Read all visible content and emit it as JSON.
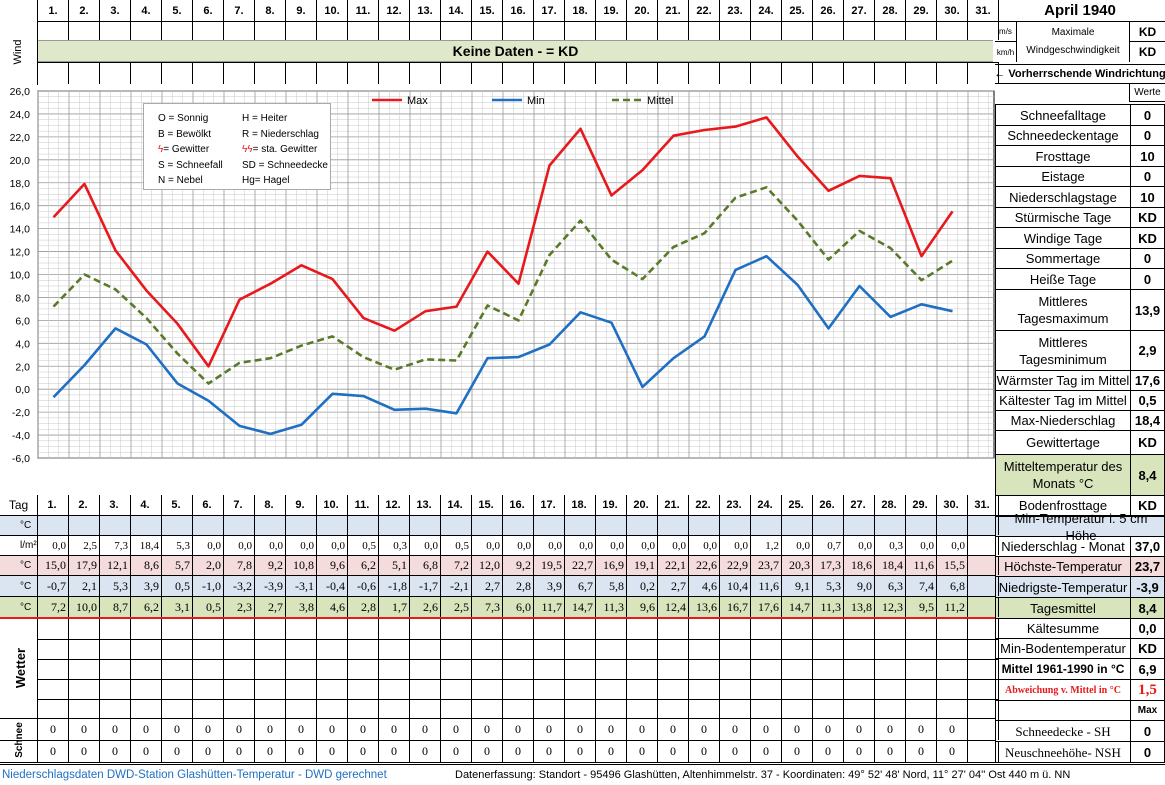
{
  "days": [
    "1.",
    "2.",
    "3.",
    "4.",
    "5.",
    "6.",
    "7.",
    "8.",
    "9.",
    "10.",
    "11.",
    "12.",
    "13.",
    "14.",
    "15.",
    "16.",
    "17.",
    "18.",
    "19.",
    "20.",
    "21.",
    "22.",
    "23.",
    "24.",
    "25.",
    "26.",
    "27.",
    "28.",
    "29.",
    "30.",
    "31."
  ],
  "header": {
    "title": "April 1940",
    "wind_label": "Wind",
    "unit_ms": "m/s",
    "unit_kmh": "km/h",
    "max_wind_line1": "Maximale",
    "max_wind_line2": "Windgeschwindigkeit",
    "max_wind_ms": "KD",
    "max_wind_kmh": "KD",
    "no_data_banner": "Keine Daten -  = KD",
    "wind_direction": "←  Vorherrschende Windrichtung",
    "values_header": "Werte",
    "tag_label": "Tag"
  },
  "legend_box": {
    "left": [
      "O = Sonnig",
      "B = Bewölkt",
      "= Gewitter",
      "S = Schneefall",
      "N = Nebel"
    ],
    "right": [
      "H = Heiter",
      "R = Niederschlag",
      "= sta. Gewitter",
      "SD = Schneedecke",
      "Hg= Hagel"
    ]
  },
  "stats": [
    {
      "label": "Schneefalltage",
      "value": "0"
    },
    {
      "label": "Schneedeckentage",
      "value": "0"
    },
    {
      "label": "Frosttage",
      "value": "10"
    },
    {
      "label": "Eistage",
      "value": "0"
    },
    {
      "label": "Niederschlagstage",
      "value": "10"
    },
    {
      "label": "Stürmische Tage",
      "value": "KD"
    },
    {
      "label": "Windige Tage",
      "value": "KD"
    },
    {
      "label": "Sommertage",
      "value": "0"
    },
    {
      "label": "Heiße Tage",
      "value": "0"
    },
    {
      "label": "Mittleres Tagesmaximum",
      "value": "13,9"
    },
    {
      "label": "Mittleres Tagesminimum",
      "value": "2,9"
    },
    {
      "label": "Wärmster Tag im Mittel",
      "value": "17,6"
    },
    {
      "label": "Kältester Tag im Mittel",
      "value": "0,5"
    },
    {
      "label": "Max-Niederschlag",
      "value": "18,4"
    },
    {
      "label": "Gewittertage",
      "value": "KD"
    },
    {
      "label": "Mitteltemperatur des Monats °C",
      "value": "8,4"
    },
    {
      "label": "Bodenfrosttage",
      "value": "KD"
    }
  ],
  "stats2": [
    {
      "label": "Min-Temperatur i. 5 cm Höhe",
      "value": ""
    },
    {
      "label": "Niederschlag - Monat",
      "value": "37,0"
    },
    {
      "label": "Höchste-Temperatur",
      "value": "23,7"
    },
    {
      "label": "Niedrigste-Temperatur",
      "value": "-3,9"
    },
    {
      "label": "Tagesmittel",
      "value": "8,4"
    },
    {
      "label": "Kältesumme",
      "value": "0,0"
    },
    {
      "label": "Min-Bodentemperatur",
      "value": "KD"
    },
    {
      "label": "Mittel 1961-1990 in °C",
      "value": "6,9"
    },
    {
      "label": "Abweichung v. Mittel in °C",
      "value": "1,5"
    },
    {
      "label": "",
      "value": "Max"
    },
    {
      "label": "Schneedecke -   SH",
      "value": "0"
    },
    {
      "label": "Neuschneehöhe- NSH",
      "value": "0"
    }
  ],
  "table": {
    "unit_c": "°C",
    "unit_lm": "l/m²",
    "wetter_label": "Wetter",
    "schnee_label": "Schnee",
    "precip": [
      "0,0",
      "2,5",
      "7,3",
      "18,4",
      "5,3",
      "0,0",
      "0,0",
      "0,0",
      "0,0",
      "0,0",
      "0,5",
      "0,3",
      "0,0",
      "0,5",
      "0,0",
      "0,0",
      "0,0",
      "0,0",
      "0,0",
      "0,0",
      "0,0",
      "0,0",
      "0,0",
      "1,2",
      "0,0",
      "0,7",
      "0,0",
      "0,3",
      "0,0",
      "0,0",
      ""
    ],
    "max": [
      "15,0",
      "17,9",
      "12,1",
      "8,6",
      "5,7",
      "2,0",
      "7,8",
      "9,2",
      "10,8",
      "9,6",
      "6,2",
      "5,1",
      "6,8",
      "7,2",
      "12,0",
      "9,2",
      "19,5",
      "22,7",
      "16,9",
      "19,1",
      "22,1",
      "22,6",
      "22,9",
      "23,7",
      "20,3",
      "17,3",
      "18,6",
      "18,4",
      "11,6",
      "15,5",
      ""
    ],
    "min": [
      "-0,7",
      "2,1",
      "5,3",
      "3,9",
      "0,5",
      "-1,0",
      "-3,2",
      "-3,9",
      "-3,1",
      "-0,4",
      "-0,6",
      "-1,8",
      "-1,7",
      "-2,1",
      "2,7",
      "2,8",
      "3,9",
      "6,7",
      "5,8",
      "0,2",
      "2,7",
      "4,6",
      "10,4",
      "11,6",
      "9,1",
      "5,3",
      "9,0",
      "6,3",
      "7,4",
      "6,8",
      ""
    ],
    "mean": [
      "7,2",
      "10,0",
      "8,7",
      "6,2",
      "3,1",
      "0,5",
      "2,3",
      "2,7",
      "3,8",
      "4,6",
      "2,8",
      "1,7",
      "2,6",
      "2,5",
      "7,3",
      "6,0",
      "11,7",
      "14,7",
      "11,3",
      "9,6",
      "12,4",
      "13,6",
      "16,7",
      "17,6",
      "14,7",
      "11,3",
      "13,8",
      "12,3",
      "9,5",
      "11,2",
      ""
    ],
    "snow_sh": [
      "0",
      "0",
      "0",
      "0",
      "0",
      "0",
      "0",
      "0",
      "0",
      "0",
      "0",
      "0",
      "0",
      "0",
      "0",
      "0",
      "0",
      "0",
      "0",
      "0",
      "0",
      "0",
      "0",
      "0",
      "0",
      "0",
      "0",
      "0",
      "0",
      "0",
      ""
    ],
    "snow_nsh": [
      "0",
      "0",
      "0",
      "0",
      "0",
      "0",
      "0",
      "0",
      "0",
      "0",
      "0",
      "0",
      "0",
      "0",
      "0",
      "0",
      "0",
      "0",
      "0",
      "0",
      "0",
      "0",
      "0",
      "0",
      "0",
      "0",
      "0",
      "0",
      "0",
      "0",
      ""
    ]
  },
  "footer": {
    "left": "Niederschlagsdaten DWD-Station Glashütten-Temperatur -  DWD gerechnet",
    "right": "Datenerfassung:  Standort -  95496  Glashütten, Altenhimmelstr. 37 - Koordinaten:  49° 52' 48' Nord,   11° 27' 04'' Ost   440 m ü. NN"
  },
  "colors": {
    "max": "#e8191c",
    "min": "#1f6fc2",
    "mean": "#5a7a2a",
    "green_band": "#dfe8c8",
    "blue_band": "#dbe5f1",
    "red_band": "#f4dcdc",
    "olive_band": "#d8e4bc"
  },
  "chart_data": {
    "type": "line",
    "title": "April 1940",
    "x": [
      1,
      2,
      3,
      4,
      5,
      6,
      7,
      8,
      9,
      10,
      11,
      12,
      13,
      14,
      15,
      16,
      17,
      18,
      19,
      20,
      21,
      22,
      23,
      24,
      25,
      26,
      27,
      28,
      29,
      30
    ],
    "ylim": [
      -6,
      26
    ],
    "yticks": [
      "26,0",
      "24,0",
      "22,0",
      "20,0",
      "18,0",
      "16,0",
      "14,0",
      "12,0",
      "10,0",
      "8,0",
      "6,0",
      "4,0",
      "2,0",
      "0,0",
      "-2,0",
      "-4,0",
      "-6,0"
    ],
    "grid": true,
    "legend": "top-center",
    "series": [
      {
        "name": "Max",
        "values": [
          15.0,
          17.9,
          12.1,
          8.6,
          5.7,
          2.0,
          7.8,
          9.2,
          10.8,
          9.6,
          6.2,
          5.1,
          6.8,
          7.2,
          12.0,
          9.2,
          19.5,
          22.7,
          16.9,
          19.1,
          22.1,
          22.6,
          22.9,
          23.7,
          20.3,
          17.3,
          18.6,
          18.4,
          11.6,
          15.5
        ]
      },
      {
        "name": "Min",
        "values": [
          -0.7,
          2.1,
          5.3,
          3.9,
          0.5,
          -1.0,
          -3.2,
          -3.9,
          -3.1,
          -0.4,
          -0.6,
          -1.8,
          -1.7,
          -2.1,
          2.7,
          2.8,
          3.9,
          6.7,
          5.8,
          0.2,
          2.7,
          4.6,
          10.4,
          11.6,
          9.1,
          5.3,
          9.0,
          6.3,
          7.4,
          6.8
        ]
      },
      {
        "name": "Mittel",
        "values": [
          7.2,
          10.0,
          8.7,
          6.2,
          3.1,
          0.5,
          2.3,
          2.7,
          3.8,
          4.6,
          2.8,
          1.7,
          2.6,
          2.5,
          7.3,
          6.0,
          11.7,
          14.7,
          11.3,
          9.6,
          12.4,
          13.6,
          16.7,
          17.6,
          14.7,
          11.3,
          13.8,
          12.3,
          9.5,
          11.2
        ]
      }
    ]
  }
}
